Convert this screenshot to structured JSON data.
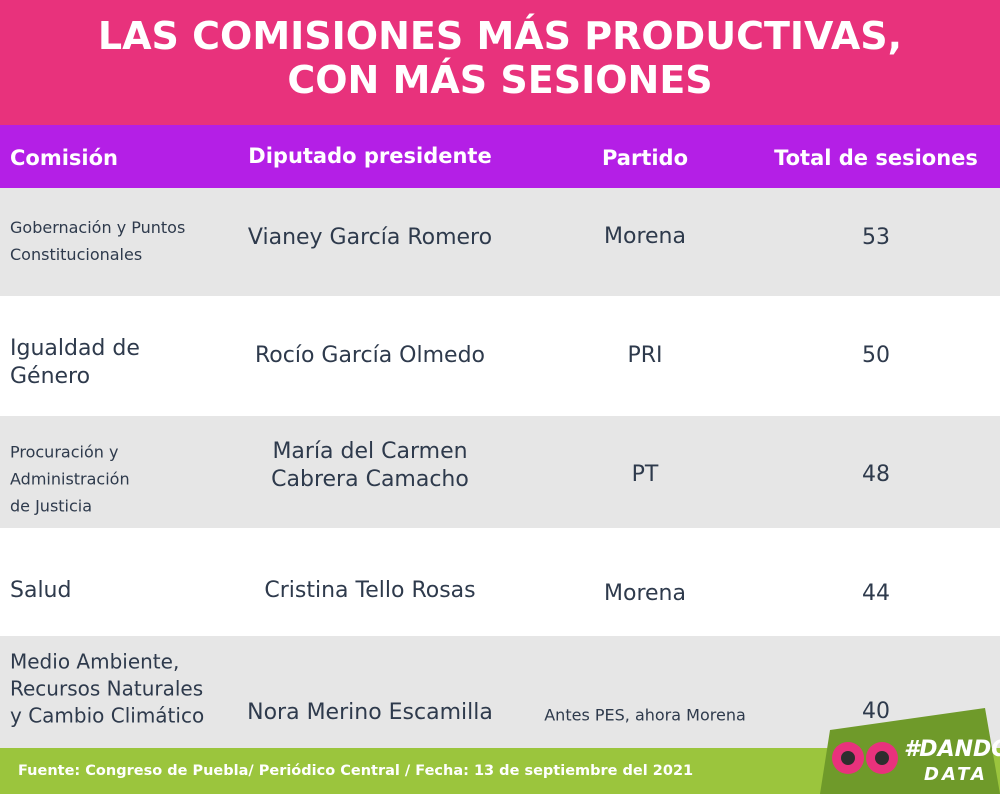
{
  "title": [
    "LAS COMISIONES MÁS PRODUCTIVAS,",
    "CON MÁS SESIONES"
  ],
  "table": {
    "header": [
      "Comisión",
      "Diputado presidente",
      "Partido",
      "Total de sesiones"
    ],
    "rows": [
      {
        "comision": [
          "Gobernación y Puntos",
          "Constitucionales"
        ],
        "diputado": [
          "Vianey García Romero"
        ],
        "partido": "Morena",
        "sesiones": 53
      },
      {
        "comision": [
          "Igualdad de",
          "Género"
        ],
        "diputado": [
          "Rocío García Olmedo"
        ],
        "partido": "PRI",
        "sesiones": 50
      },
      {
        "comision": [
          "Procuración y",
          "Administración",
          "de Justicia"
        ],
        "diputado": [
          "María del Carmen",
          "Cabrera Camacho"
        ],
        "partido": "PT",
        "sesiones": 48
      },
      {
        "comision": [
          "Salud"
        ],
        "diputado": [
          "Cristina Tello Rosas"
        ],
        "partido": "Morena",
        "sesiones": 44
      },
      {
        "comision": [
          "Medio Ambiente,",
          "Recursos Naturales",
          "y Cambio Climático"
        ],
        "diputado": [
          "Nora Merino Escamilla"
        ],
        "partido": "Antes PES, ahora Morena",
        "sesiones": 40
      }
    ]
  },
  "footer": {
    "source": "Fuente: Congreso de Puebla/ Periódico Central / Fecha: 13 de septiembre del 2021"
  },
  "logo": [
    "#DANDO",
    "DATA"
  ]
}
